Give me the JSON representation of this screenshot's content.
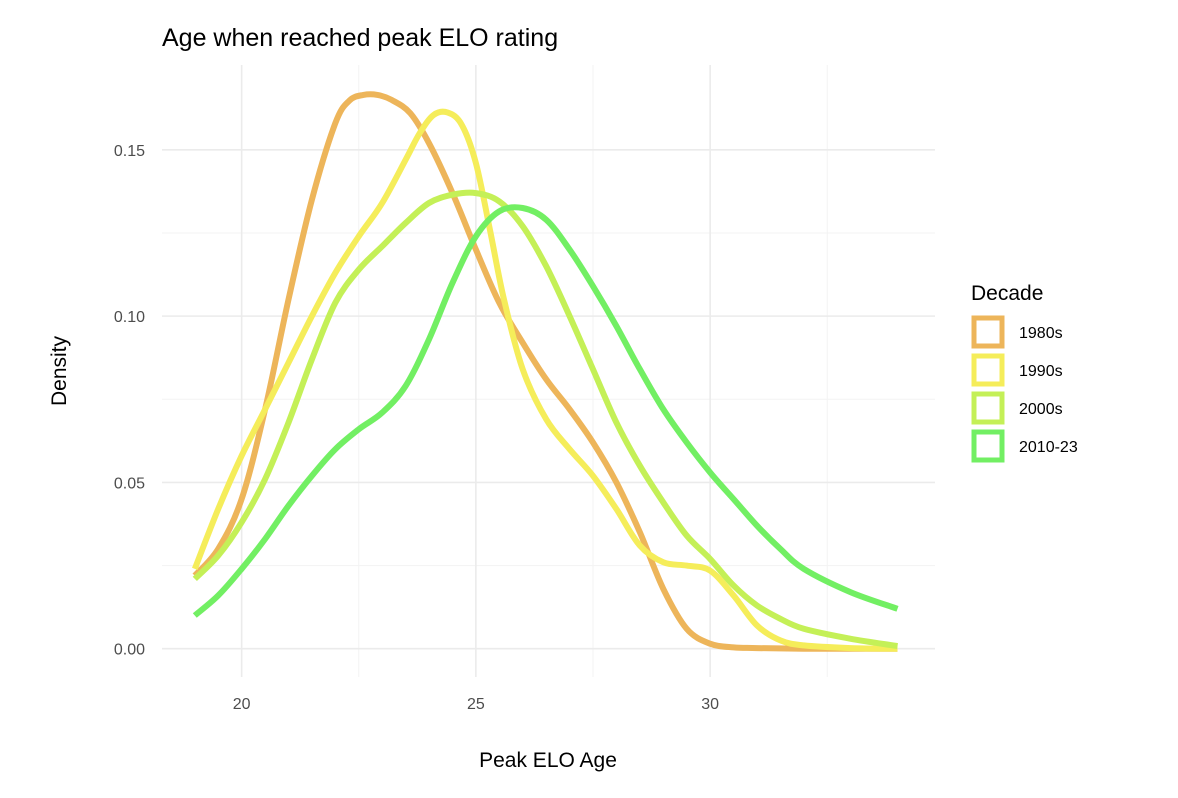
{
  "chart_data": {
    "type": "line",
    "title": "Age when reached peak ELO rating",
    "xlabel": "Peak ELO Age",
    "ylabel": "Density",
    "xlim": [
      18.3,
      34.8
    ],
    "ylim": [
      -0.0085,
      0.1755
    ],
    "x_ticks": [
      20,
      25,
      30
    ],
    "x_tick_labels": [
      "20",
      "25",
      "30"
    ],
    "x_minor_ticks": [
      22.5,
      27.5,
      32.5
    ],
    "y_ticks": [
      0.0,
      0.05,
      0.1,
      0.15
    ],
    "y_tick_labels": [
      "0.00",
      "0.05",
      "0.10",
      "0.15"
    ],
    "y_minor_ticks": [
      0.025,
      0.075,
      0.125
    ],
    "grid": true,
    "legend": {
      "title": "Decade",
      "position": "right"
    },
    "series": [
      {
        "name": "1980s",
        "color": "#EDB55A",
        "x": [
          19.0,
          19.5,
          20.0,
          20.5,
          21.0,
          21.5,
          22.0,
          22.3,
          22.6,
          22.9,
          23.2,
          23.6,
          24.0,
          24.5,
          25.0,
          25.5,
          26.0,
          26.5,
          27.0,
          27.5,
          28.0,
          28.5,
          29.0,
          29.5,
          30.0,
          30.5,
          31.0,
          32.0,
          33.0,
          34.0
        ],
        "y": [
          0.022,
          0.03,
          0.045,
          0.072,
          0.105,
          0.135,
          0.158,
          0.1648,
          0.1665,
          0.1665,
          0.165,
          0.161,
          0.152,
          0.137,
          0.12,
          0.104,
          0.092,
          0.081,
          0.072,
          0.062,
          0.05,
          0.035,
          0.018,
          0.006,
          0.0015,
          0.0004,
          0.0002,
          0.0,
          0.0,
          0.0
        ]
      },
      {
        "name": "1990s",
        "color": "#F5ED5A",
        "x": [
          19.0,
          19.5,
          20.0,
          20.5,
          21.0,
          21.5,
          22.0,
          22.5,
          23.0,
          23.5,
          23.8,
          24.1,
          24.4,
          24.7,
          25.0,
          25.3,
          25.6,
          26.0,
          26.5,
          27.0,
          27.5,
          28.0,
          28.5,
          29.0,
          29.5,
          30.0,
          30.5,
          31.0,
          31.5,
          32.0,
          33.0,
          34.0
        ],
        "y": [
          0.024,
          0.042,
          0.058,
          0.072,
          0.086,
          0.1,
          0.113,
          0.124,
          0.134,
          0.147,
          0.155,
          0.1605,
          0.1612,
          0.1575,
          0.146,
          0.126,
          0.105,
          0.084,
          0.069,
          0.06,
          0.052,
          0.042,
          0.031,
          0.026,
          0.025,
          0.0235,
          0.016,
          0.007,
          0.0025,
          0.001,
          0.0002,
          0.0
        ]
      },
      {
        "name": "2000s",
        "color": "#C4F057",
        "x": [
          19.0,
          19.5,
          20.0,
          20.5,
          21.0,
          21.5,
          22.0,
          22.5,
          23.0,
          23.5,
          24.0,
          24.5,
          25.0,
          25.5,
          26.0,
          26.5,
          27.0,
          27.5,
          28.0,
          28.5,
          29.0,
          29.5,
          30.0,
          30.5,
          31.0,
          31.5,
          32.0,
          33.0,
          34.0
        ],
        "y": [
          0.021,
          0.028,
          0.038,
          0.051,
          0.068,
          0.087,
          0.104,
          0.114,
          0.121,
          0.128,
          0.134,
          0.1365,
          0.137,
          0.1345,
          0.127,
          0.115,
          0.1,
          0.084,
          0.068,
          0.055,
          0.044,
          0.034,
          0.027,
          0.019,
          0.013,
          0.009,
          0.006,
          0.003,
          0.0008
        ]
      },
      {
        "name": "2010-23",
        "color": "#72EF63",
        "x": [
          19.0,
          19.5,
          20.0,
          20.5,
          21.0,
          21.5,
          22.0,
          22.5,
          23.0,
          23.5,
          24.0,
          24.5,
          25.0,
          25.5,
          26.0,
          26.5,
          27.0,
          27.5,
          28.0,
          28.5,
          29.0,
          29.5,
          30.0,
          30.5,
          31.0,
          31.5,
          32.0,
          33.0,
          34.0
        ],
        "y": [
          0.01,
          0.016,
          0.024,
          0.033,
          0.043,
          0.052,
          0.06,
          0.066,
          0.071,
          0.079,
          0.093,
          0.11,
          0.124,
          0.1315,
          0.1325,
          0.129,
          0.12,
          0.109,
          0.097,
          0.084,
          0.072,
          0.062,
          0.053,
          0.045,
          0.037,
          0.03,
          0.024,
          0.017,
          0.012
        ]
      }
    ]
  }
}
